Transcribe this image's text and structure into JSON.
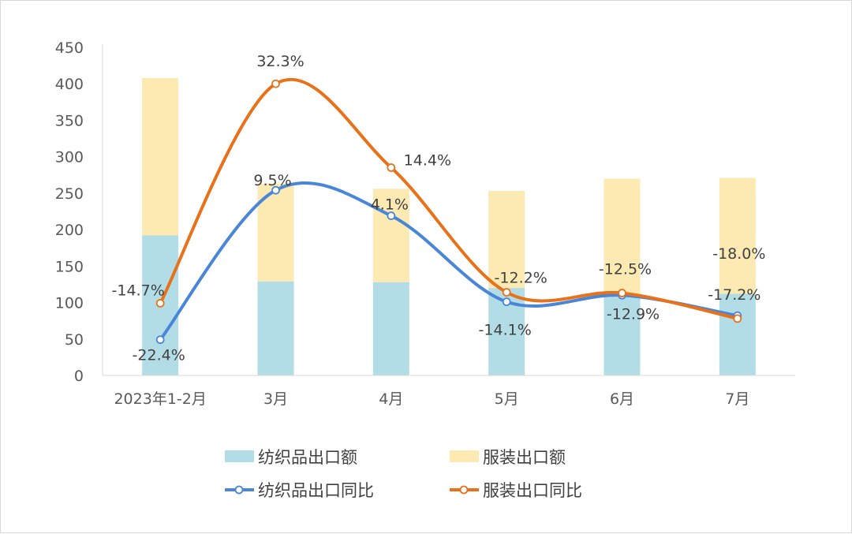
{
  "chart_data": {
    "type": "bar",
    "categories": [
      "2023年1-2月",
      "3月",
      "4月",
      "5月",
      "6月",
      "7月"
    ],
    "ylim": [
      0,
      450
    ],
    "yticks": [
      0,
      50,
      100,
      150,
      200,
      250,
      300,
      350,
      400,
      450
    ],
    "stacked": true,
    "bar_series": [
      {
        "name": "纺织品出口额",
        "color": "#b3dde6",
        "values": [
          192,
          129,
          128,
          120,
          112,
          112
        ]
      },
      {
        "name": "服装出口额",
        "color": "#fde9b2",
        "values": [
          216,
          134,
          128,
          133,
          158,
          159
        ]
      }
    ],
    "line_series": [
      {
        "name": "纺织品出口同比",
        "color": "#4a86d8",
        "positions": [
          49,
          254,
          219,
          101,
          110,
          82
        ],
        "labels": [
          "-22.4%",
          "9.5%",
          "4.1%",
          "-14.1%",
          "-12.9%",
          "-17.2%"
        ]
      },
      {
        "name": "服装出口同比",
        "color": "#e8711a",
        "positions": [
          99,
          400,
          285,
          114,
          113,
          78
        ],
        "labels": [
          "-14.7%",
          "32.3%",
          "14.4%",
          "-12.2%",
          "-12.5%",
          "-18.0%"
        ]
      }
    ],
    "legend_position": "bottom",
    "grid": false
  }
}
